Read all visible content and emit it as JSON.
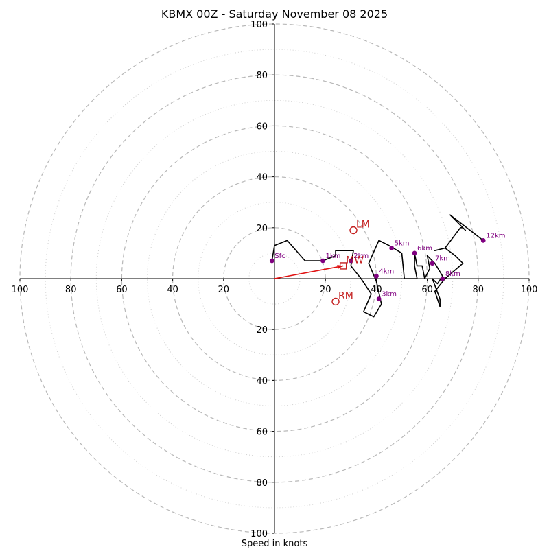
{
  "chart_data": {
    "type": "hodograph",
    "title": "KBMX 00Z - Saturday November 08 2025",
    "xlabel": "Speed in knots",
    "units": "knots",
    "range": [
      -100,
      100
    ],
    "ring_major": [
      20,
      40,
      60,
      80,
      100
    ],
    "ring_minor": [
      10,
      30,
      50,
      70,
      90
    ],
    "x_ticks": [
      "100",
      "80",
      "60",
      "40",
      "20",
      "20",
      "40",
      "60",
      "80",
      "100"
    ],
    "y_ticks": [
      "100",
      "80",
      "60",
      "40",
      "20",
      "20",
      "40",
      "60",
      "80",
      "100"
    ],
    "x_tick_values": [
      -100,
      -80,
      -60,
      -40,
      -20,
      20,
      40,
      60,
      80,
      100
    ],
    "y_tick_values": [
      100,
      80,
      60,
      40,
      20,
      -20,
      -40,
      -60,
      -80,
      -100
    ],
    "trace": [
      [
        -1,
        7
      ],
      [
        0,
        13
      ],
      [
        5,
        15
      ],
      [
        12,
        7
      ],
      [
        19,
        7
      ],
      [
        24,
        9
      ],
      [
        24,
        11
      ],
      [
        31,
        11
      ],
      [
        30,
        5
      ],
      [
        34,
        0
      ],
      [
        38,
        -6
      ],
      [
        35,
        -13
      ],
      [
        39,
        -15
      ],
      [
        42,
        -10
      ],
      [
        40,
        -1
      ],
      [
        37,
        6
      ],
      [
        41,
        15
      ],
      [
        45,
        13
      ],
      [
        50,
        10
      ],
      [
        51,
        0
      ],
      [
        56,
        0
      ],
      [
        55,
        5
      ],
      [
        55,
        10
      ],
      [
        56,
        5
      ],
      [
        58,
        5
      ],
      [
        59,
        0
      ],
      [
        61,
        4
      ],
      [
        60,
        9
      ],
      [
        63,
        6
      ],
      [
        66,
        1
      ],
      [
        64,
        -2
      ],
      [
        62,
        0
      ],
      [
        65,
        -8
      ],
      [
        65,
        -11
      ],
      [
        63,
        -5
      ],
      [
        67,
        0
      ],
      [
        74,
        6
      ],
      [
        71,
        9
      ],
      [
        67,
        12
      ],
      [
        63,
        11
      ],
      [
        67,
        12
      ],
      [
        73,
        20
      ],
      [
        74,
        20
      ],
      [
        75,
        19
      ],
      [
        69,
        25
      ],
      [
        82,
        15
      ]
    ],
    "height_points": [
      {
        "label": "Sfc",
        "u": -1,
        "v": 7
      },
      {
        "label": "1km",
        "u": 19,
        "v": 7
      },
      {
        "label": "2km",
        "u": 30,
        "v": 7
      },
      {
        "label": "3km",
        "u": 41,
        "v": -8
      },
      {
        "label": "4km",
        "u": 40,
        "v": 1
      },
      {
        "label": "5km",
        "u": 46,
        "v": 12
      },
      {
        "label": "6km",
        "u": 55,
        "v": 10
      },
      {
        "label": "7km",
        "u": 62,
        "v": 6
      },
      {
        "label": "8km",
        "u": 66,
        "v": 0
      },
      {
        "label": "12km",
        "u": 82,
        "v": 15
      }
    ],
    "storm_motion": [
      {
        "label": "LM",
        "u": 31,
        "v": 19,
        "marker": "circle"
      },
      {
        "label": "RM",
        "u": 24,
        "v": -9,
        "marker": "circle"
      },
      {
        "label": "MW",
        "u": 27,
        "v": 5,
        "marker": "square"
      }
    ],
    "mean_wind_vector": {
      "u": 27,
      "v": 5
    },
    "colors": {
      "trace": "#000000",
      "height_points": "#800080",
      "storm_motion": "#c41f1f",
      "vector": "#e01010",
      "rings": "#b8b8b8",
      "axes": "#000000"
    }
  }
}
